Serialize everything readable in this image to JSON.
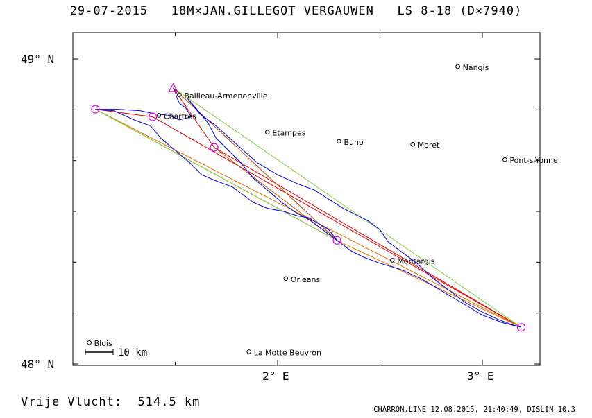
{
  "title": "29-07-2015   18M×JAN.GILLEGOT VERGAUWEN   LS 8-18 (D×7940)",
  "distance_label": "Vrije Vlucht:  514.5 km",
  "footer": "CHARRON.LINE 12.08.2015, 21:40:49, DISLIN 10.3",
  "scale_label": "10 km",
  "axes": {
    "y_ticks": [
      {
        "label": "49° N",
        "lat": 49.0
      },
      {
        "label": "48° N",
        "lat": 48.0
      }
    ],
    "x_ticks": [
      {
        "label": "2° E",
        "lon": 2.0
      },
      {
        "label": "3° E",
        "lon": 3.0
      }
    ]
  },
  "cities": [
    {
      "name": "Nangis",
      "lon": 2.88,
      "lat": 48.975
    },
    {
      "name": "Bailleau-Armenonville",
      "lon": 1.52,
      "lat": 48.882
    },
    {
      "name": "Chartres",
      "lon": 1.42,
      "lat": 48.815
    },
    {
      "name": "Etampes",
      "lon": 1.95,
      "lat": 48.76
    },
    {
      "name": "Buno",
      "lon": 2.3,
      "lat": 48.73
    },
    {
      "name": "Moret",
      "lon": 2.66,
      "lat": 48.72
    },
    {
      "name": "Pont-s-Yonne",
      "lon": 3.11,
      "lat": 48.67
    },
    {
      "name": "Montargis",
      "lon": 2.56,
      "lat": 48.34
    },
    {
      "name": "Orleans",
      "lon": 2.04,
      "lat": 48.28
    },
    {
      "name": "Blois",
      "lon": 1.08,
      "lat": 48.07
    },
    {
      "name": "La Motte Beuvron",
      "lon": 1.86,
      "lat": 48.04
    }
  ],
  "turnpoints": [
    {
      "lon": 1.11,
      "lat": 48.835
    },
    {
      "lon": 1.39,
      "lat": 48.81
    },
    {
      "lon": 1.69,
      "lat": 48.71
    },
    {
      "lon": 2.29,
      "lat": 48.405
    },
    {
      "lon": 3.19,
      "lat": 48.12
    }
  ],
  "start": {
    "lon": 1.49,
    "lat": 48.905
  },
  "colors": {
    "track": "#0000e6",
    "turnpoint": "#e000e0",
    "leg_red": "#e00000",
    "leg_brown": "#b05000",
    "leg_green": "#80d040",
    "leg_orange": "#e07000",
    "start": "#e000e0"
  }
}
